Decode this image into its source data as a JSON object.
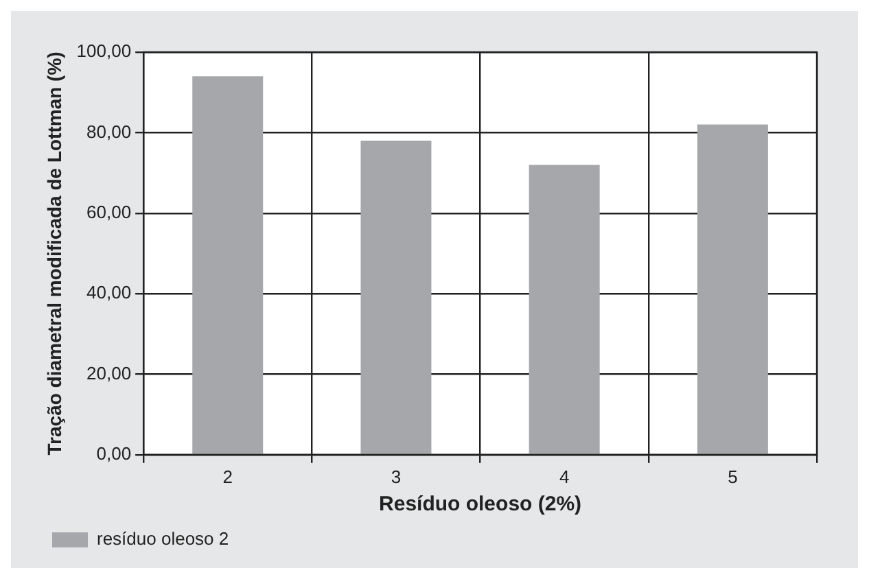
{
  "chart_data": {
    "type": "bar",
    "xlabel": "Resíduo oleoso (2%)",
    "ylabel": "Tração diametral modificada de Lottman (%)",
    "categories": [
      "2",
      "3",
      "4",
      "5"
    ],
    "series": [
      {
        "name": "resíduo oleoso 2",
        "color": "#a6a7aa",
        "values": [
          94,
          78,
          72,
          82
        ]
      }
    ],
    "ylim": [
      0,
      100
    ],
    "yticks": [
      {
        "value": 0,
        "label": "0,00"
      },
      {
        "value": 20,
        "label": "20,00"
      },
      {
        "value": 40,
        "label": "40,00"
      },
      {
        "value": 60,
        "label": "60,00"
      },
      {
        "value": 80,
        "label": "80,00"
      },
      {
        "value": 100,
        "label": "100,00"
      }
    ],
    "grid": true,
    "legend": "bottom left"
  }
}
